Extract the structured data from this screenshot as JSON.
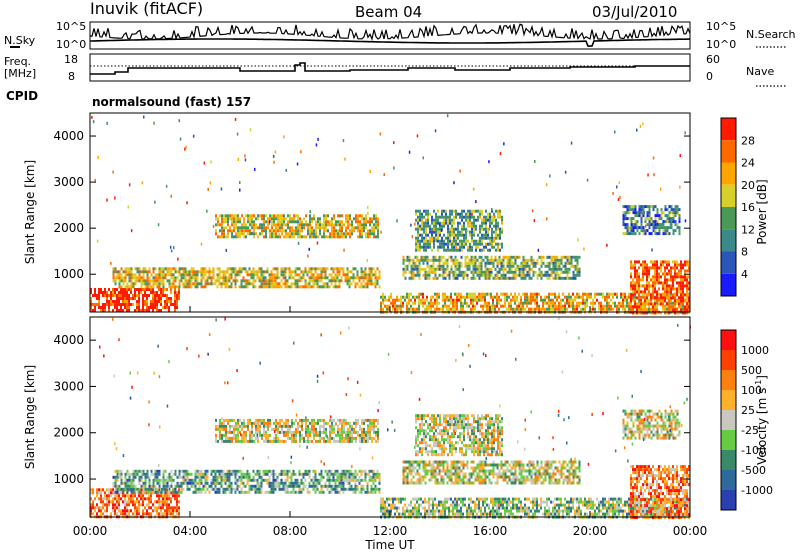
{
  "header": {
    "radar": "Inuvik (fitACF)",
    "beam": "Beam 04",
    "date": "03/Jul/2010"
  },
  "noise_panel": {
    "left_label": "N.Sky",
    "left_ticks": [
      "10^5",
      "10^0"
    ],
    "right_label": "N.Search",
    "right_ticks": [
      "10^5",
      "10^0"
    ]
  },
  "freq_panel": {
    "left_label_line1": "Freq.",
    "left_label_line2": "[MHz]",
    "left_ticks": [
      "18",
      "8"
    ],
    "right_label": "Nave",
    "right_ticks": [
      "60",
      "0"
    ],
    "cpid_label": "CPID",
    "cpid_text": "normalsound (fast) 157"
  },
  "chart_data": [
    {
      "type": "heatmap",
      "name": "power",
      "ylabel": "Slant Range [km]",
      "ylim": [
        180,
        4500
      ],
      "yticks": [
        "1000",
        "2000",
        "3000",
        "4000"
      ],
      "xlabel": "Time UT",
      "xlim": [
        "00:00",
        "24:00"
      ],
      "xticks": [
        "00:00",
        "04:00",
        "08:00",
        "12:00",
        "16:00",
        "20:00",
        "00:00"
      ],
      "colorbar": {
        "label": "Power [dB]",
        "ticks": [
          "4",
          "8",
          "12",
          "16",
          "20",
          "24",
          "28"
        ],
        "colors": [
          "#1a1aff",
          "#2b55b8",
          "#3b8a8a",
          "#4a9a55",
          "#d8d02a",
          "#ffa500",
          "#ff6a00",
          "#ff1a00"
        ]
      },
      "bands": [
        {
          "t0": 0.0,
          "t1": 3.6,
          "r0": 180,
          "r1": 700,
          "level": 0.95
        },
        {
          "t0": 0.9,
          "t1": 11.6,
          "r0": 700,
          "r1": 1150,
          "level": 0.6
        },
        {
          "t0": 5.0,
          "t1": 11.5,
          "r0": 1800,
          "r1": 2300,
          "level": 0.6
        },
        {
          "t0": 11.6,
          "t1": 24.0,
          "r0": 180,
          "r1": 600,
          "level": 0.65
        },
        {
          "t0": 12.5,
          "t1": 19.6,
          "r0": 900,
          "r1": 1400,
          "level": 0.45
        },
        {
          "t0": 13.0,
          "t1": 16.5,
          "r0": 1500,
          "r1": 2400,
          "level": 0.4
        },
        {
          "t0": 21.6,
          "t1": 24.0,
          "r0": 180,
          "r1": 1300,
          "level": 0.85
        },
        {
          "t0": 21.3,
          "t1": 23.6,
          "r0": 1900,
          "r1": 2500,
          "level": 0.3
        }
      ]
    },
    {
      "type": "heatmap",
      "name": "velocity",
      "ylabel": "Slant Range [km]",
      "ylim": [
        180,
        4500
      ],
      "yticks": [
        "1000",
        "2000",
        "3000",
        "4000"
      ],
      "xlabel": "Time UT",
      "xlim": [
        "00:00",
        "24:00"
      ],
      "xticks": [
        "00:00",
        "04:00",
        "08:00",
        "12:00",
        "16:00",
        "20:00",
        "00:00"
      ],
      "colorbar": {
        "label": "Velocity [m s^-1]",
        "ticks": [
          "1000",
          "500",
          "100",
          "25",
          "-25",
          "-100",
          "-500",
          "-1000"
        ],
        "colors": [
          "#2a3fb0",
          "#2f6a9a",
          "#3a8a6a",
          "#66cc44",
          "#c8c8c0",
          "#ffb02a",
          "#ff8010",
          "#ff4000",
          "#ff1010"
        ]
      },
      "bands": [
        {
          "t0": 0.0,
          "t1": 3.6,
          "r0": 180,
          "r1": 800,
          "level": 0.75
        },
        {
          "t0": 0.9,
          "t1": 11.6,
          "r0": 700,
          "r1": 1200,
          "level": 0.35
        },
        {
          "t0": 5.0,
          "t1": 11.5,
          "r0": 1800,
          "r1": 2300,
          "level": 0.5
        },
        {
          "t0": 11.6,
          "t1": 24.0,
          "r0": 180,
          "r1": 600,
          "level": 0.42
        },
        {
          "t0": 12.5,
          "t1": 19.6,
          "r0": 900,
          "r1": 1400,
          "level": 0.5
        },
        {
          "t0": 13.0,
          "t1": 16.5,
          "r0": 1500,
          "r1": 2400,
          "level": 0.5
        },
        {
          "t0": 21.6,
          "t1": 24.0,
          "r0": 180,
          "r1": 1300,
          "level": 0.7
        },
        {
          "t0": 21.3,
          "t1": 23.6,
          "r0": 1900,
          "r1": 2500,
          "level": 0.5
        }
      ]
    }
  ]
}
